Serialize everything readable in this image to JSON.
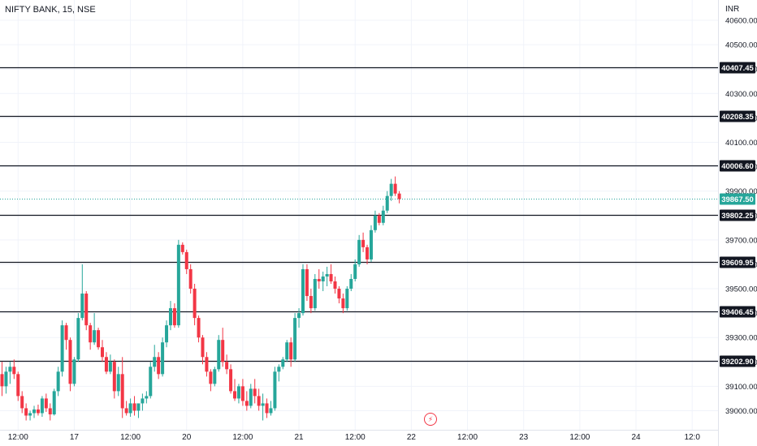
{
  "header": {
    "symbol_title": "NIFTY BANK, 15, NSE",
    "currency": "INR"
  },
  "colors": {
    "up": "#26a69a",
    "down": "#f23645",
    "grid": "#f0f3fa",
    "level_line": "#131722",
    "label_bg": "#131722",
    "label_text": "#ffffff",
    "last_price_bg": "#26a69a",
    "axis_text": "#131722"
  },
  "icons": {
    "replay": "flash-icon"
  },
  "chart_data": {
    "type": "candlestick",
    "title": "NIFTY BANK, 15, NSE",
    "ylim": [
      38955,
      40650
    ],
    "y_ticks": [
      39000,
      39100,
      39200,
      39300,
      39400,
      39500,
      39600,
      39700,
      39800,
      39900,
      40000,
      40100,
      40200,
      40300,
      40400,
      40500,
      40600
    ],
    "y_tick_labels": [
      "39000.00",
      "39100.00",
      "39200.00",
      "39300.00",
      "39400.00",
      "39500.00",
      "39600.00",
      "39700.00",
      "39800.00",
      "39900.00",
      "40000.00",
      "40100.00",
      "40200.00",
      "40300.00",
      "40400.00",
      "40500.00",
      "40600.00"
    ],
    "x_tick_labels": [
      "12:00",
      "17",
      "12:00",
      "20",
      "12:00",
      "21",
      "12:00",
      "22",
      "12:00",
      "23",
      "12:00",
      "24",
      "12:0"
    ],
    "x_tick_bar_index": [
      4,
      18,
      32,
      46,
      60,
      74,
      88,
      102,
      116,
      130,
      144,
      158,
      172
    ],
    "levels": [
      {
        "value": 40407.45,
        "label": "40407.45"
      },
      {
        "value": 40208.35,
        "label": "40208.35"
      },
      {
        "value": 40006.6,
        "label": "40006.60"
      },
      {
        "value": 39802.25,
        "label": "39802.25"
      },
      {
        "value": 39609.95,
        "label": "39609.95"
      },
      {
        "value": 39406.45,
        "label": "39406.45"
      },
      {
        "value": 39202.9,
        "label": "39202.90"
      }
    ],
    "last_price": {
      "value": 39867.5,
      "label": "39867.50"
    },
    "grid": true,
    "candles": [
      [
        39150,
        39200,
        39060,
        39100
      ],
      [
        39100,
        39180,
        39070,
        39160
      ],
      [
        39160,
        39200,
        39110,
        39180
      ],
      [
        39180,
        39210,
        39130,
        39150
      ],
      [
        39150,
        39160,
        39040,
        39060
      ],
      [
        39060,
        39080,
        38990,
        39010
      ],
      [
        39010,
        39030,
        38960,
        38980
      ],
      [
        38980,
        39000,
        38960,
        38990
      ],
      [
        38990,
        39020,
        38970,
        39005
      ],
      [
        39005,
        39025,
        38980,
        38990
      ],
      [
        38990,
        39060,
        38975,
        39050
      ],
      [
        39050,
        39070,
        38995,
        39010
      ],
      [
        39010,
        39030,
        38960,
        38985
      ],
      [
        38985,
        39090,
        38980,
        39080
      ],
      [
        39080,
        39180,
        39060,
        39160
      ],
      [
        39160,
        39370,
        39140,
        39350
      ],
      [
        39350,
        39360,
        39250,
        39290
      ],
      [
        39290,
        39300,
        39080,
        39110
      ],
      [
        39110,
        39220,
        39100,
        39210
      ],
      [
        39210,
        39400,
        39200,
        39380
      ],
      [
        39380,
        39600,
        39370,
        39480
      ],
      [
        39480,
        39490,
        39330,
        39350
      ],
      [
        39350,
        39360,
        39250,
        39280
      ],
      [
        39280,
        39400,
        39270,
        39330
      ],
      [
        39330,
        39340,
        39250,
        39260
      ],
      [
        39260,
        39290,
        39200,
        39220
      ],
      [
        39220,
        39240,
        39150,
        39160
      ],
      [
        39160,
        39230,
        39150,
        39200
      ],
      [
        39200,
        39210,
        39050,
        39080
      ],
      [
        39080,
        39180,
        39060,
        39150
      ],
      [
        39150,
        39220,
        38970,
        39010
      ],
      [
        39010,
        39040,
        38980,
        38990
      ],
      [
        38990,
        39050,
        38975,
        39030
      ],
      [
        39030,
        39060,
        38980,
        39000
      ],
      [
        39000,
        39020,
        38970,
        39030
      ],
      [
        39030,
        39070,
        39000,
        39050
      ],
      [
        39050,
        39080,
        39030,
        39060
      ],
      [
        39060,
        39200,
        39050,
        39180
      ],
      [
        39180,
        39270,
        39160,
        39220
      ],
      [
        39220,
        39240,
        39130,
        39150
      ],
      [
        39150,
        39300,
        39140,
        39280
      ],
      [
        39280,
        39370,
        39260,
        39350
      ],
      [
        39350,
        39450,
        39330,
        39420
      ],
      [
        39420,
        39440,
        39340,
        39350
      ],
      [
        39350,
        39700,
        39340,
        39680
      ],
      [
        39680,
        39690,
        39640,
        39650
      ],
      [
        39650,
        39660,
        39560,
        39580
      ],
      [
        39580,
        39600,
        39480,
        39500
      ],
      [
        39500,
        39520,
        39350,
        39380
      ],
      [
        39380,
        39390,
        39280,
        39300
      ],
      [
        39300,
        39310,
        39190,
        39220
      ],
      [
        39220,
        39240,
        39140,
        39160
      ],
      [
        39160,
        39170,
        39080,
        39110
      ],
      [
        39110,
        39180,
        39100,
        39170
      ],
      [
        39170,
        39310,
        39160,
        39290
      ],
      [
        39290,
        39340,
        39180,
        39200
      ],
      [
        39200,
        39230,
        39150,
        39170
      ],
      [
        39170,
        39190,
        39070,
        39080
      ],
      [
        39080,
        39130,
        39040,
        39050
      ],
      [
        39050,
        39110,
        39030,
        39100
      ],
      [
        39100,
        39130,
        39020,
        39040
      ],
      [
        39040,
        39080,
        39000,
        39020
      ],
      [
        39020,
        39110,
        39010,
        39090
      ],
      [
        39090,
        39130,
        39030,
        39060
      ],
      [
        39060,
        39090,
        39000,
        39020
      ],
      [
        39020,
        39070,
        38960,
        39030
      ],
      [
        39030,
        39050,
        38970,
        38990
      ],
      [
        38990,
        39040,
        38980,
        39010
      ],
      [
        39010,
        39180,
        39000,
        39160
      ],
      [
        39160,
        39190,
        39120,
        39180
      ],
      [
        39180,
        39220,
        39170,
        39210
      ],
      [
        39210,
        39290,
        39200,
        39280
      ],
      [
        39280,
        39300,
        39180,
        39210
      ],
      [
        39210,
        39400,
        39200,
        39380
      ],
      [
        39380,
        39420,
        39340,
        39400
      ],
      [
        39400,
        39600,
        39390,
        39580
      ],
      [
        39580,
        39600,
        39450,
        39470
      ],
      [
        39470,
        39500,
        39400,
        39420
      ],
      [
        39420,
        39560,
        39410,
        39540
      ],
      [
        39540,
        39580,
        39500,
        39530
      ],
      [
        39530,
        39570,
        39490,
        39550
      ],
      [
        39550,
        39590,
        39510,
        39560
      ],
      [
        39560,
        39600,
        39520,
        39530
      ],
      [
        39530,
        39550,
        39480,
        39500
      ],
      [
        39500,
        39510,
        39440,
        39460
      ],
      [
        39460,
        39480,
        39400,
        39420
      ],
      [
        39420,
        39510,
        39410,
        39500
      ],
      [
        39500,
        39560,
        39490,
        39540
      ],
      [
        39540,
        39620,
        39530,
        39600
      ],
      [
        39600,
        39720,
        39590,
        39700
      ],
      [
        39700,
        39730,
        39650,
        39670
      ],
      [
        39670,
        39680,
        39600,
        39620
      ],
      [
        39620,
        39760,
        39610,
        39740
      ],
      [
        39740,
        39820,
        39730,
        39800
      ],
      [
        39800,
        39810,
        39760,
        39770
      ],
      [
        39770,
        39840,
        39760,
        39820
      ],
      [
        39820,
        39900,
        39810,
        39880
      ],
      [
        39880,
        39950,
        39860,
        39930
      ],
      [
        39930,
        39960,
        39880,
        39890
      ],
      [
        39890,
        39900,
        39850,
        39867.5
      ]
    ]
  }
}
